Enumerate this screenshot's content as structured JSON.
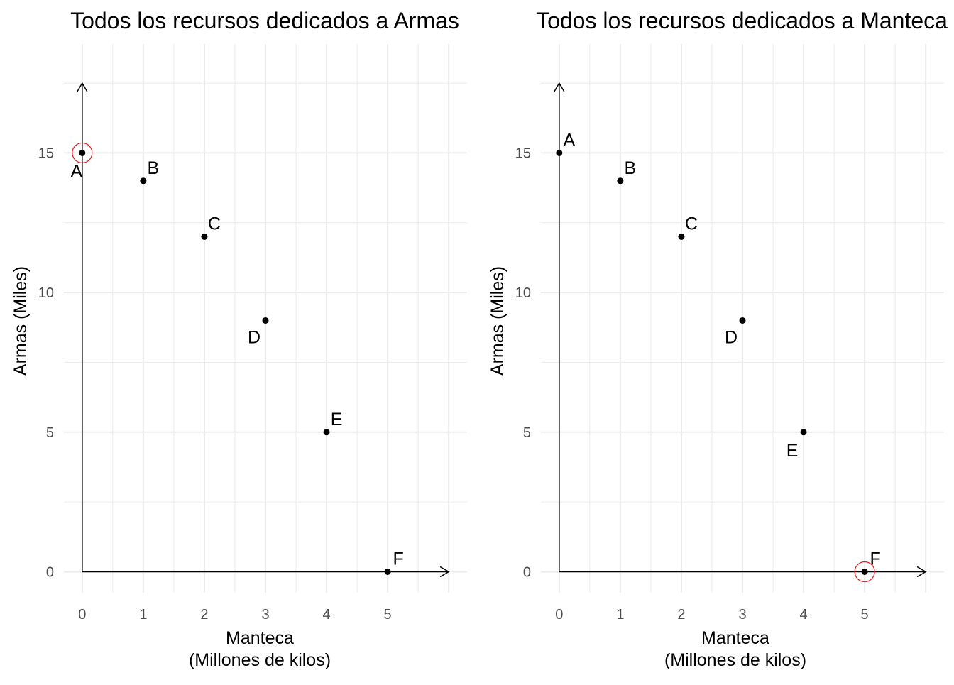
{
  "colors": {
    "points": "#000000",
    "highlight_circle": "#e41a1c",
    "grid": "#ebebeb",
    "axis_arrow": "#000000",
    "tick_text": "#4d4d4d"
  },
  "chart_data": [
    {
      "type": "scatter",
      "title": "Todos los recursos dedicados a Armas",
      "xlabel": [
        "Manteca",
        "(Millones de kilos)"
      ],
      "ylabel": "Armas (Miles)",
      "xlim": [
        0,
        6
      ],
      "ylim": [
        0,
        17.5
      ],
      "x_ticks": [
        0,
        1,
        2,
        3,
        4,
        5
      ],
      "y_ticks": [
        0,
        5,
        10,
        15
      ],
      "grid": true,
      "points": [
        {
          "label": "A",
          "x": 0,
          "y": 15
        },
        {
          "label": "B",
          "x": 1,
          "y": 14
        },
        {
          "label": "C",
          "x": 2,
          "y": 12
        },
        {
          "label": "D",
          "x": 3,
          "y": 9
        },
        {
          "label": "E",
          "x": 4,
          "y": 5
        },
        {
          "label": "F",
          "x": 5,
          "y": 0
        }
      ],
      "highlighted_point": "A"
    },
    {
      "type": "scatter",
      "title": "Todos los recursos dedicados a Manteca",
      "xlabel": [
        "Manteca",
        "(Millones de kilos)"
      ],
      "ylabel": "Armas (Miles)",
      "xlim": [
        0,
        6
      ],
      "ylim": [
        0,
        17.5
      ],
      "x_ticks": [
        0,
        1,
        2,
        3,
        4,
        5
      ],
      "y_ticks": [
        0,
        5,
        10,
        15
      ],
      "grid": true,
      "points": [
        {
          "label": "A",
          "x": 0,
          "y": 15
        },
        {
          "label": "B",
          "x": 1,
          "y": 14
        },
        {
          "label": "C",
          "x": 2,
          "y": 12
        },
        {
          "label": "D",
          "x": 3,
          "y": 9
        },
        {
          "label": "E",
          "x": 4,
          "y": 5
        },
        {
          "label": "F",
          "x": 5,
          "y": 0
        }
      ],
      "highlighted_point": "F"
    }
  ]
}
